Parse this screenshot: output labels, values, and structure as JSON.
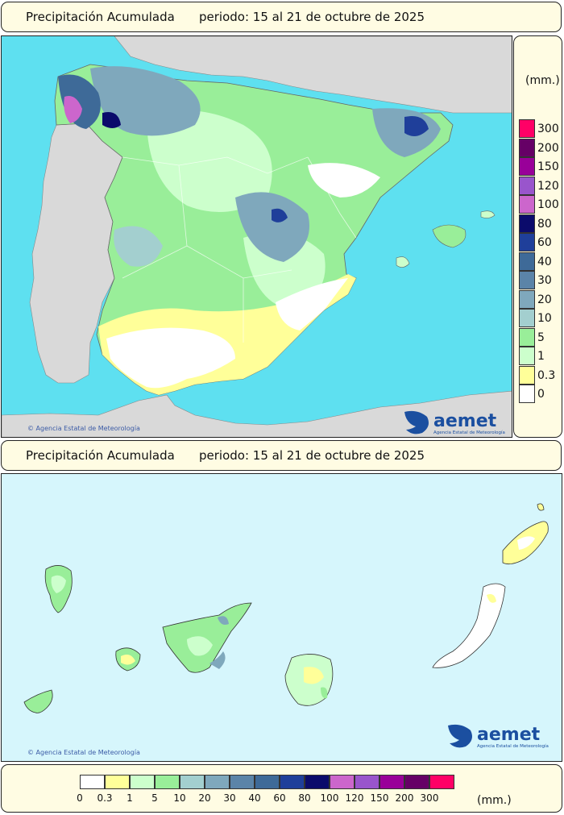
{
  "top_panel": {
    "title": "Precipitación Acumulada",
    "period": "periodo: 15 al 21 de octubre de 2025",
    "credit": "Agencia Estatal de Meteorología",
    "logo_text": "aemet",
    "logo_subtext": "Agencia Estatal de Meteorología"
  },
  "bottom_panel": {
    "title": "Precipitación Acumulada",
    "period": "periodo: 15 al 21 de octubre de 2025",
    "credit": "Agencia Estatal de Meteorología",
    "logo_text": "aemet",
    "logo_subtext": "Agencia Estatal de Meteorología"
  },
  "legend": {
    "unit": "(mm.)",
    "levels": [
      {
        "label": "0",
        "color": "#ffffff"
      },
      {
        "label": "0.3",
        "color": "#ffff99"
      },
      {
        "label": "1",
        "color": "#ccffcc"
      },
      {
        "label": "5",
        "color": "#99ee99"
      },
      {
        "label": "10",
        "color": "#a3cfcf"
      },
      {
        "label": "20",
        "color": "#7fa8bc"
      },
      {
        "label": "30",
        "color": "#5b84a8"
      },
      {
        "label": "40",
        "color": "#3e6a98"
      },
      {
        "label": "60",
        "color": "#1f3f9a"
      },
      {
        "label": "80",
        "color": "#0b0b6b"
      },
      {
        "label": "100",
        "color": "#cc66cc"
      },
      {
        "label": "120",
        "color": "#9955cc"
      },
      {
        "label": "150",
        "color": "#990099"
      },
      {
        "label": "200",
        "color": "#660066"
      },
      {
        "label": "300",
        "color": "#ff0066"
      }
    ]
  },
  "colors": {
    "sea": "#5ee0f0",
    "land_outside": "#d9d9d9",
    "canary_sea": "#d6f6fc"
  }
}
